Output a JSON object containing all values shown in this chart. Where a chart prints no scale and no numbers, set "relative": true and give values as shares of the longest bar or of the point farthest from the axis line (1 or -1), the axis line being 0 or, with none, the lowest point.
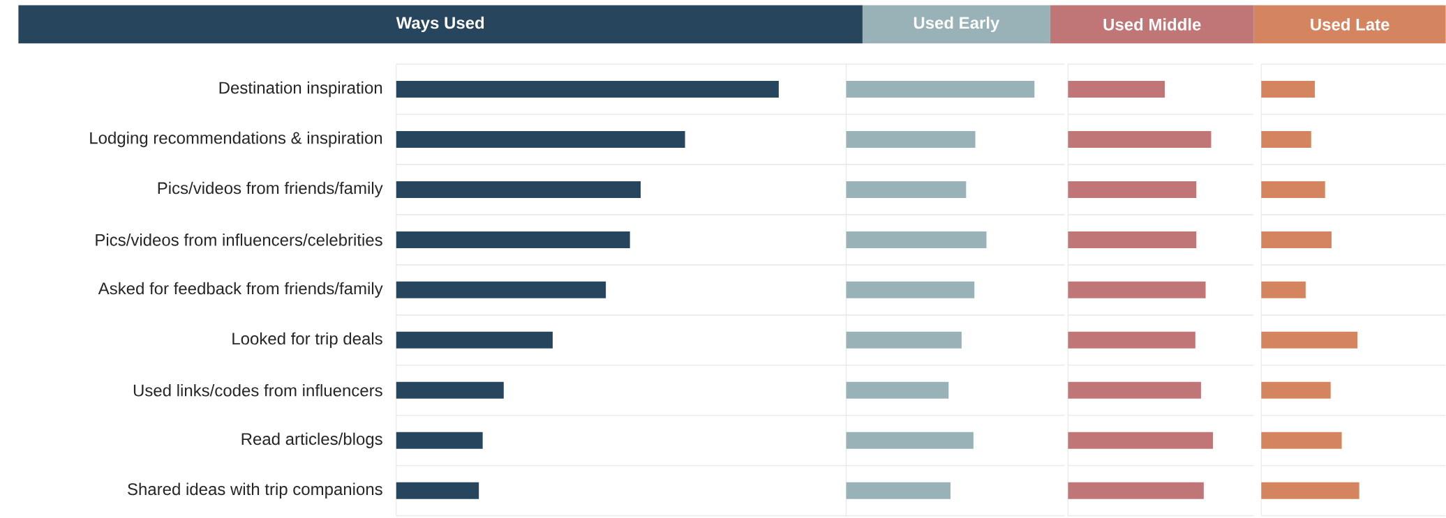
{
  "chart_data": [
    {
      "type": "bar",
      "orientation": "horizontal",
      "relative": true,
      "title": "Ways Used",
      "color": "#27465e",
      "grid": "y",
      "categories": [
        "Destination inspiration",
        "Lodging recommendations & inspiration",
        "Pics/videos from friends/family",
        "Pics/videos from influencers/celebrities",
        "Asked for feedback from friends/family",
        "Looked for trip deals",
        "Used links/codes from influencers",
        "Read articles/blogs",
        "Shared ideas with trip companions"
      ],
      "values": [
        1,
        0.755,
        0.639,
        0.611,
        0.548,
        0.409,
        0.281,
        0.226,
        0.216
      ]
    },
    {
      "type": "bar",
      "orientation": "horizontal",
      "relative": true,
      "title": "Used Early",
      "color": "#98b2b8",
      "grid": "y",
      "tick_labels": false,
      "categories": [
        null,
        null,
        null,
        null,
        null,
        null,
        null,
        null,
        null
      ],
      "values": [
        1,
        0.686,
        0.637,
        0.745,
        0.681,
        0.613,
        0.544,
        0.676,
        0.554
      ]
    },
    {
      "type": "bar",
      "orientation": "horizontal",
      "relative": true,
      "title": "Used Middle",
      "color": "#c07577",
      "grid": "y",
      "tick_labels": false,
      "categories": [
        null,
        null,
        null,
        null,
        null,
        null,
        null,
        null,
        null
      ],
      "values": [
        0.667,
        0.987,
        0.885,
        0.885,
        0.949,
        0.878,
        0.917,
        1,
        0.936
      ]
    },
    {
      "type": "bar",
      "orientation": "horizontal",
      "relative": true,
      "title": "Used Late",
      "color": "#d4845e",
      "grid": "y",
      "tick_labels": false,
      "categories": [
        null,
        null,
        null,
        null,
        null,
        null,
        null,
        null,
        null
      ],
      "values": [
        0.547,
        0.509,
        0.651,
        0.717,
        0.453,
        0.981,
        0.708,
        0.821,
        1
      ]
    }
  ]
}
